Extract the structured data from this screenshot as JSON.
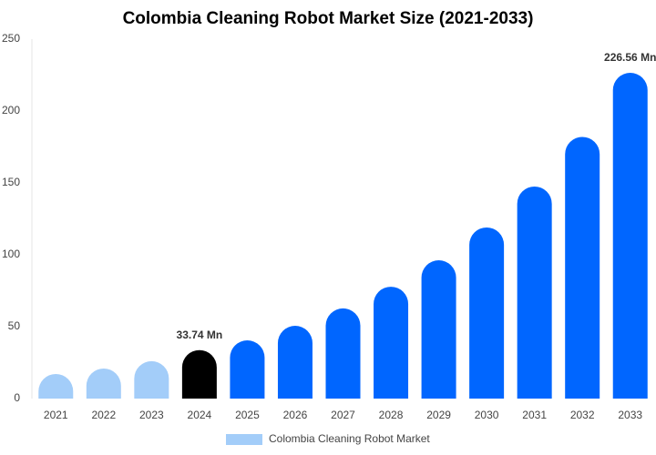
{
  "chart_data": {
    "type": "bar",
    "title": "Colombia Cleaning Robot Market Size (2021-2033)",
    "categories": [
      "2021",
      "2022",
      "2023",
      "2024",
      "2025",
      "2026",
      "2027",
      "2028",
      "2029",
      "2030",
      "2031",
      "2032",
      "2033"
    ],
    "series": [
      {
        "name": "Colombia Cleaning Robot Market",
        "color": "#a3cdf9",
        "values": [
          17.1,
          20.9,
          26,
          33.74,
          40.5,
          50.6,
          62.7,
          77.8,
          96.2,
          119,
          147.5,
          182,
          226.56
        ],
        "value_labels": [
          null,
          null,
          null,
          "33.74 Mn",
          null,
          null,
          null,
          null,
          null,
          null,
          null,
          null,
          "226.56 Mn"
        ],
        "colors": [
          "#a3cdf9",
          "#a3cdf9",
          "#a3cdf9",
          "#000000",
          "#0066ff",
          "#0066ff",
          "#0066ff",
          "#0066ff",
          "#0066ff",
          "#0066ff",
          "#0066ff",
          "#0066ff",
          "#0066ff"
        ]
      }
    ],
    "ylim": [
      0,
      250
    ],
    "yticks": [
      0,
      50,
      100,
      150,
      200,
      250
    ],
    "grid": false
  }
}
